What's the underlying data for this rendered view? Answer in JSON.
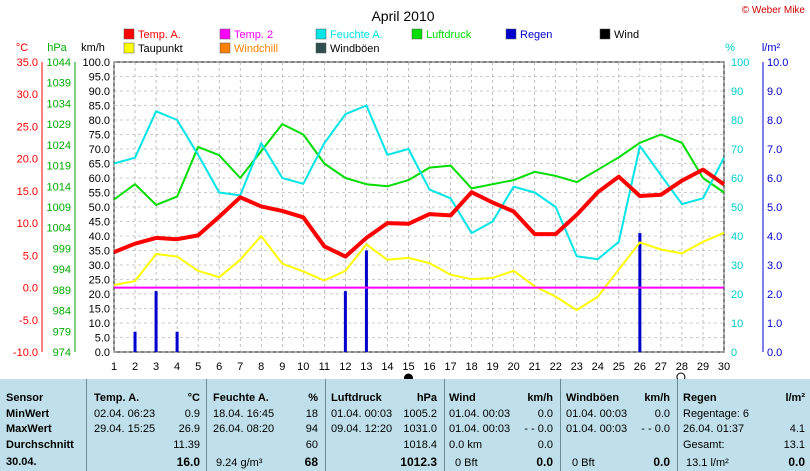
{
  "title": "April 2010",
  "copyright": "© Weber Mike",
  "colors": {
    "temp": "#ff0000",
    "temp2": "#ff00ff",
    "humidity": "#00e5e5",
    "pressure": "#00dd00",
    "rain": "#0000cc",
    "wind": "#000000",
    "dew": "#ffff00",
    "windchill": "#ff8000",
    "gust": "#2f4f4f"
  },
  "legend": [
    {
      "label": "Temp. A.",
      "color": "#ff0000"
    },
    {
      "label": "Temp. 2",
      "color": "#ff00ff"
    },
    {
      "label": "Feuchte A.",
      "color": "#00e5e5"
    },
    {
      "label": "Luftdruck",
      "color": "#00dd00"
    },
    {
      "label": "Regen",
      "color": "#0000cc"
    },
    {
      "label": "Wind",
      "color": "#000000"
    },
    {
      "label": "Taupunkt",
      "color": "#ffff00"
    },
    {
      "label": "Windchill",
      "color": "#ff8000"
    },
    {
      "label": "Windböen",
      "color": "#2f4f4f"
    }
  ],
  "axis_units": {
    "celsius": "°C",
    "hpa": "hPa",
    "kmh": "km/h",
    "percent": "%",
    "rain": "l/m²"
  },
  "chart_data": {
    "type": "line",
    "x": [
      1,
      2,
      3,
      4,
      5,
      6,
      7,
      8,
      9,
      10,
      11,
      12,
      13,
      14,
      15,
      16,
      17,
      18,
      19,
      20,
      21,
      22,
      23,
      24,
      25,
      26,
      27,
      28,
      29,
      30
    ],
    "x_ticks": [
      "1",
      "2",
      "3",
      "4",
      "5",
      "6",
      "7",
      "8",
      "9",
      "10",
      "11",
      "12",
      "13",
      "14",
      "15",
      "16",
      "17",
      "18",
      "19",
      "20",
      "21",
      "22",
      "23",
      "24",
      "25",
      "26",
      "27",
      "28",
      "29",
      "30"
    ],
    "ylim_kmh": [
      0,
      100
    ],
    "ylim_celsius": [
      -10,
      35
    ],
    "ylim_hpa": [
      974,
      1044
    ],
    "ylim_percent": [
      0,
      100
    ],
    "ylim_rain": [
      0,
      10
    ],
    "yticks_kmh": [
      "0.0",
      "5.0",
      "10.0",
      "15.0",
      "20.0",
      "25.0",
      "30.0",
      "35.0",
      "40.0",
      "45.0",
      "50.0",
      "55.0",
      "60.0",
      "65.0",
      "70.0",
      "75.0",
      "80.0",
      "85.0",
      "90.0",
      "95.0",
      "100.0"
    ],
    "yticks_celsius": [
      "-10.0",
      "-5.0",
      "0.0",
      "5.0",
      "10.0",
      "15.0",
      "20.0",
      "25.0",
      "30.0",
      "35.0"
    ],
    "yticks_hpa": [
      "974",
      "979",
      "984",
      "989",
      "994",
      "999",
      "1004",
      "1009",
      "1014",
      "1019",
      "1024",
      "1029",
      "1034",
      "1039",
      "1044"
    ],
    "yticks_percent": [
      "0",
      "10",
      "20",
      "30",
      "40",
      "50",
      "60",
      "70",
      "80",
      "90",
      "100"
    ],
    "yticks_rain": [
      "0.0",
      "1.0",
      "2.0",
      "3.0",
      "4.0",
      "5.0",
      "6.0",
      "7.0",
      "8.0",
      "9.0",
      "10.0"
    ],
    "grid": true,
    "series": [
      {
        "name": "Temp. A.",
        "axis": "celsius",
        "values": [
          5.5,
          6.8,
          7.7,
          7.5,
          8.1,
          11.0,
          14.0,
          12.6,
          11.9,
          10.9,
          6.4,
          4.8,
          7.7,
          10.0,
          9.9,
          11.4,
          11.2,
          14.8,
          13.2,
          11.8,
          8.3,
          8.3,
          11.3,
          14.8,
          17.2,
          14.2,
          14.4,
          16.6,
          18.3,
          16.0
        ]
      },
      {
        "name": "Taupunkt",
        "axis": "celsius",
        "values": [
          0.4,
          1.0,
          5.2,
          4.8,
          2.6,
          1.6,
          4.3,
          8.0,
          3.7,
          2.5,
          1.1,
          2.6,
          6.7,
          4.3,
          4.6,
          3.8,
          2.0,
          1.3,
          1.5,
          2.6,
          0.2,
          -1.4,
          -3.5,
          -1.4,
          2.8,
          7.0,
          5.9,
          5.3,
          7.1,
          8.5
        ]
      },
      {
        "name": "Temp. 2",
        "axis": "celsius",
        "values": [
          0,
          0,
          0,
          0,
          0,
          0,
          0,
          0,
          0,
          0,
          0,
          0,
          0,
          0,
          0,
          0,
          0,
          0,
          0,
          0,
          0,
          0,
          0,
          0,
          0,
          0,
          0,
          0,
          0,
          0
        ]
      },
      {
        "name": "Feuchte A.",
        "axis": "percent",
        "values": [
          65,
          67,
          83,
          80,
          68,
          55,
          54,
          72,
          60,
          58,
          72,
          82,
          85,
          68,
          70,
          56,
          53,
          41,
          45,
          57,
          55,
          50,
          33,
          32,
          38,
          71,
          61,
          51,
          53,
          67
        ]
      },
      {
        "name": "Luftdruck",
        "axis": "hpa",
        "values": [
          1010.8,
          1014.5,
          1009.5,
          1011.5,
          1023.5,
          1021.5,
          1016.0,
          1022.5,
          1029.0,
          1026.5,
          1019.5,
          1016.0,
          1014.5,
          1014.0,
          1015.5,
          1018.5,
          1019.0,
          1013.5,
          1014.5,
          1015.5,
          1017.5,
          1016.5,
          1015.0,
          1018.0,
          1021.0,
          1024.5,
          1026.5,
          1024.5,
          1016.0,
          1012.5
        ]
      }
    ],
    "rain": {
      "name": "Regen",
      "axis": "rain",
      "days": [
        2,
        3,
        4,
        12,
        13,
        26
      ],
      "values": [
        0.7,
        2.1,
        0.7,
        2.1,
        3.5,
        4.1
      ]
    }
  },
  "stats": {
    "headers": {
      "sensor": "Sensor",
      "temp": "Temp. A.",
      "temp_unit": "°C",
      "hum": "Feuchte A.",
      "hum_unit": "%",
      "press": "Luftdruck",
      "press_unit": "hPa",
      "wind": "Wind",
      "wind_unit": "km/h",
      "gust": "Windböen",
      "gust_unit": "km/h",
      "rain": "Regen",
      "rain_unit": "l/m²"
    },
    "row_labels": [
      "MinWert",
      "MaxWert",
      "Durchschnitt",
      "30.04."
    ],
    "temp": [
      [
        "02.04.  06:23",
        "0.9"
      ],
      [
        "29.04.  15:25",
        "26.9"
      ],
      [
        "",
        "11.39"
      ],
      [
        "",
        "16.0"
      ]
    ],
    "hum": [
      [
        "18.04.  16:45",
        "18"
      ],
      [
        "26.04.  08:20",
        "94"
      ],
      [
        "",
        "60"
      ],
      [
        "9.24 g/m³",
        "68"
      ]
    ],
    "press": [
      [
        "01.04.  00:03",
        "1005.2"
      ],
      [
        "09.04.  12:20",
        "1031.0"
      ],
      [
        "",
        "1018.4"
      ],
      [
        "",
        "1012.3"
      ]
    ],
    "wind": [
      [
        "01.04.  00:03",
        "0.0"
      ],
      [
        "01.04.  00:03",
        "- - 0.0"
      ],
      [
        "0.0 km",
        "0.0"
      ],
      [
        "0 Bft",
        "0.0"
      ]
    ],
    "gust": [
      [
        "01.04.  00:03",
        "0.0"
      ],
      [
        "01.04.  00:03",
        "- - 0.0"
      ],
      [
        "",
        ""
      ],
      [
        "0 Bft",
        "0.0"
      ]
    ],
    "rain": [
      [
        "Regentage: 6",
        ""
      ],
      [
        "26.04.  01:37",
        "4.1"
      ],
      [
        "Gesamt:",
        "13.1"
      ],
      [
        "13.1 l/m²",
        "0.0"
      ]
    ]
  }
}
